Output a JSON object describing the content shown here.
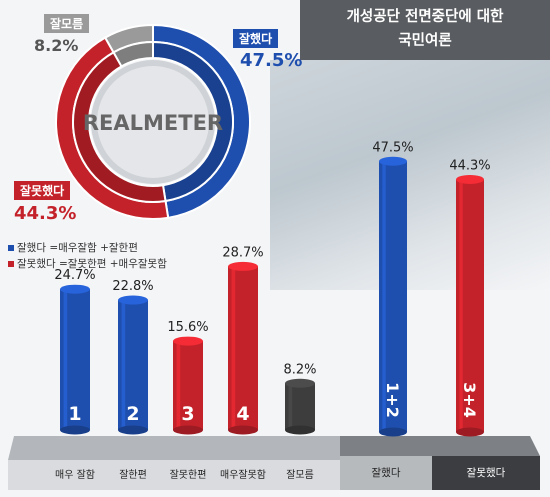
{
  "header": {
    "title": "개성공단 전면중단에 대한\n국민여론"
  },
  "logo": "REALMETER",
  "colors": {
    "good": "#1f4fae",
    "bad": "#c4222a",
    "unknown": "#9a9a9a",
    "dark": "#3d3d3d"
  },
  "legend": [
    {
      "label": "잘했다 =매우잘함 +잘한편",
      "color": "#1f4fae"
    },
    {
      "label": "잘못했다 =잘못한편 +매우잘못함",
      "color": "#c4222a"
    }
  ],
  "chart_data": [
    {
      "type": "pie",
      "slices": [
        {
          "name": "잘했다",
          "value": 47.5,
          "label": "47.5%",
          "color": "#1f4fae"
        },
        {
          "name": "잘못했다",
          "value": 44.3,
          "label": "44.3%",
          "color": "#c4222a"
        },
        {
          "name": "잘모름",
          "value": 8.2,
          "label": "8.2%",
          "color": "#9a9a9a"
        }
      ]
    },
    {
      "type": "bar",
      "categories": [
        "매우 잘함",
        "잘한편",
        "잘못한편",
        "매우잘못함",
        "잘모름"
      ],
      "bar_numbers": [
        "1",
        "2",
        "3",
        "4",
        ""
      ],
      "values": [
        24.7,
        22.8,
        15.6,
        28.7,
        8.2
      ],
      "labels": [
        "24.7%",
        "22.8%",
        "15.6%",
        "28.7%",
        "8.2%"
      ],
      "colors": [
        "#1f4fae",
        "#1f4fae",
        "#c4222a",
        "#c4222a",
        "#3d3d3d"
      ],
      "ylim": [
        0,
        50
      ]
    },
    {
      "type": "bar",
      "categories": [
        "잘했다",
        "잘못했다"
      ],
      "bar_numbers": [
        "1+2",
        "3+4"
      ],
      "values": [
        47.5,
        44.3
      ],
      "labels": [
        "47.5%",
        "44.3%"
      ],
      "colors": [
        "#1f4fae",
        "#c4222a"
      ],
      "ylim": [
        0,
        50
      ]
    }
  ]
}
